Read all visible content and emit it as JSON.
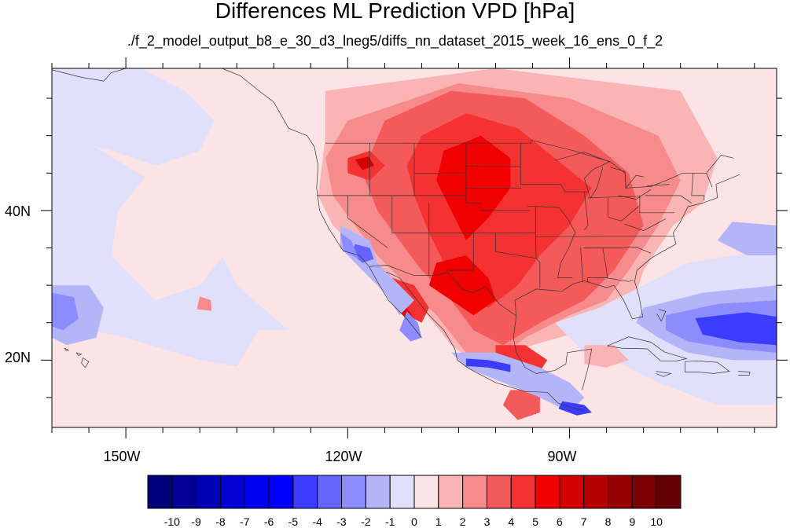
{
  "title": "Differences ML Prediction VPD [hPa]",
  "subtitle": "./f_2_model_output_b8_e_30_d3_lneg5/diffs_nn_dataset_2015_week_16_ens_0_f_2",
  "map": {
    "projection": "cylindrical-equidistant",
    "lon_range": [
      -160,
      -62
    ],
    "lat_range": [
      11,
      59
    ],
    "lon_ticks": [
      "150W",
      "120W",
      "90W"
    ],
    "lat_ticks": [
      "40N",
      "20N"
    ],
    "features": [
      "coastlines",
      "us-state-borders",
      "national-borders"
    ]
  },
  "colorbar": {
    "levels": [
      "-10",
      "-9",
      "-8",
      "-7",
      "-6",
      "-5",
      "-4",
      "-3",
      "-2",
      "-1",
      "0",
      "1",
      "2",
      "3",
      "4",
      "5",
      "6",
      "7",
      "8",
      "9",
      "10"
    ],
    "colors": [
      "#00007a",
      "#000096",
      "#0000b4",
      "#0000d2",
      "#0000ee",
      "#0000ff",
      "#3c3cff",
      "#6464ff",
      "#8c8cff",
      "#b4b4f8",
      "#e0e0fa",
      "#fce4e6",
      "#fab4b4",
      "#f78a8a",
      "#f55a5a",
      "#f53232",
      "#f00000",
      "#d20000",
      "#b40000",
      "#960000",
      "#7a0000",
      "#640000"
    ]
  },
  "regions": [
    {
      "type": "polygon",
      "color": "#e0e0fa",
      "points": [
        [
          -160,
          52
        ],
        [
          -150,
          46
        ],
        [
          -140,
          40
        ],
        [
          -135,
          30
        ],
        [
          -128,
          24
        ],
        [
          -122,
          20
        ],
        [
          -115,
          16
        ],
        [
          -110,
          13
        ],
        [
          -160,
          13
        ]
      ]
    },
    {
      "type": "polygon",
      "color": "#fce4e6",
      "points": [
        [
          -147,
          45
        ],
        [
          -140,
          40
        ],
        [
          -136,
          35
        ],
        [
          -140,
          30
        ],
        [
          -146,
          28
        ],
        [
          -152,
          34
        ],
        [
          -151,
          40
        ]
      ]
    },
    {
      "type": "polygon",
      "color": "#fce4e6",
      "points": [
        [
          -160,
          13
        ],
        [
          -160,
          25
        ],
        [
          -150,
          23
        ],
        [
          -140,
          20
        ],
        [
          -128,
          18
        ],
        [
          -120,
          16
        ],
        [
          -112,
          14
        ],
        [
          -105,
          12
        ],
        [
          -100,
          11
        ],
        [
          -160,
          11
        ]
      ]
    },
    {
      "type": "polygon",
      "color": "#fce4e6",
      "points": [
        [
          -137,
          16
        ],
        [
          -132,
          24
        ],
        [
          -126,
          24
        ],
        [
          -120,
          20
        ],
        [
          -114,
          16
        ],
        [
          -108,
          13
        ],
        [
          -100,
          11
        ],
        [
          -125,
          11
        ]
      ]
    },
    {
      "type": "polygon",
      "color": "#fce4e6",
      "points": [
        [
          -125,
          59
        ],
        [
          -62,
          59
        ],
        [
          -62,
          33
        ],
        [
          -72,
          34
        ],
        [
          -76,
          36
        ],
        [
          -80,
          30
        ],
        [
          -82,
          24
        ],
        [
          -88,
          22
        ],
        [
          -96,
          20
        ],
        [
          -104,
          18
        ],
        [
          -110,
          22
        ],
        [
          -114,
          28
        ],
        [
          -118,
          32
        ],
        [
          -122,
          36
        ],
        [
          -124,
          42
        ],
        [
          -125,
          50
        ]
      ]
    },
    {
      "type": "polygon",
      "color": "#fab4b4",
      "points": [
        [
          -123,
          56
        ],
        [
          -100,
          59
        ],
        [
          -75,
          56
        ],
        [
          -70,
          47
        ],
        [
          -72,
          41
        ],
        [
          -76,
          38
        ],
        [
          -80,
          32
        ],
        [
          -82,
          26
        ],
        [
          -88,
          24
        ],
        [
          -95,
          22
        ],
        [
          -102,
          19
        ],
        [
          -106,
          22
        ],
        [
          -110,
          27
        ],
        [
          -114,
          31
        ],
        [
          -118,
          34
        ],
        [
          -122,
          38
        ],
        [
          -124,
          42
        ],
        [
          -123,
          50
        ]
      ]
    },
    {
      "type": "polygon",
      "color": "#f78a8a",
      "points": [
        [
          -120,
          52
        ],
        [
          -105,
          57
        ],
        [
          -90,
          55
        ],
        [
          -78,
          50
        ],
        [
          -75,
          44
        ],
        [
          -78,
          38
        ],
        [
          -82,
          32
        ],
        [
          -85,
          28
        ],
        [
          -90,
          26
        ],
        [
          -96,
          23
        ],
        [
          -100,
          20
        ],
        [
          -104,
          21
        ],
        [
          -108,
          26
        ],
        [
          -112,
          30
        ],
        [
          -116,
          34
        ],
        [
          -119,
          38
        ],
        [
          -122,
          42
        ],
        [
          -123,
          47
        ]
      ]
    },
    {
      "type": "polygon",
      "color": "#f55a5a",
      "points": [
        [
          -115,
          52
        ],
        [
          -106,
          56
        ],
        [
          -96,
          55
        ],
        [
          -88,
          50
        ],
        [
          -82,
          45
        ],
        [
          -80,
          38
        ],
        [
          -84,
          32
        ],
        [
          -88,
          28
        ],
        [
          -94,
          25
        ],
        [
          -99,
          22
        ],
        [
          -103,
          24
        ],
        [
          -106,
          28
        ],
        [
          -110,
          32
        ],
        [
          -113,
          36
        ],
        [
          -116,
          40
        ],
        [
          -118,
          45
        ]
      ]
    },
    {
      "type": "polygon",
      "color": "#f53232",
      "points": [
        [
          -110,
          50
        ],
        [
          -104,
          53
        ],
        [
          -97,
          51
        ],
        [
          -92,
          47
        ],
        [
          -87,
          43
        ],
        [
          -90,
          38
        ],
        [
          -94,
          34
        ],
        [
          -97,
          30
        ],
        [
          -101,
          27
        ],
        [
          -104,
          29
        ],
        [
          -107,
          33
        ],
        [
          -109,
          37
        ],
        [
          -111,
          42
        ],
        [
          -112,
          46
        ]
      ]
    },
    {
      "type": "polygon",
      "color": "#f00000",
      "points": [
        [
          -107,
          48
        ],
        [
          -102,
          50
        ],
        [
          -98,
          47
        ],
        [
          -98,
          43
        ],
        [
          -101,
          39
        ],
        [
          -104,
          36
        ],
        [
          -106,
          40
        ],
        [
          -108,
          44
        ]
      ]
    },
    {
      "type": "polygon",
      "color": "#f00000",
      "points": [
        [
          -108,
          33
        ],
        [
          -104,
          34
        ],
        [
          -101,
          31
        ],
        [
          -100,
          28
        ],
        [
          -103,
          26
        ],
        [
          -106,
          28
        ],
        [
          -109,
          30
        ]
      ]
    },
    {
      "type": "polygon",
      "color": "#f53232",
      "points": [
        [
          -120,
          47
        ],
        [
          -117,
          48
        ],
        [
          -115,
          46
        ],
        [
          -117,
          44
        ],
        [
          -120,
          45
        ]
      ]
    },
    {
      "type": "polygon",
      "color": "#d20000",
      "points": [
        [
          -119,
          46.8
        ],
        [
          -117.2,
          47.2
        ],
        [
          -116.4,
          46
        ],
        [
          -118,
          45.4
        ]
      ]
    },
    {
      "type": "polygon",
      "color": "#f53232",
      "points": [
        [
          -114,
          31
        ],
        [
          -111,
          30
        ],
        [
          -109,
          27
        ],
        [
          -110,
          25
        ],
        [
          -112,
          26
        ],
        [
          -114,
          28
        ]
      ]
    },
    {
      "type": "polygon",
      "color": "#f00000",
      "points": [
        [
          -114.5,
          29.2
        ],
        [
          -113,
          28.5
        ],
        [
          -110.8,
          25.2
        ],
        [
          -111.6,
          24.8
        ],
        [
          -113.6,
          27.5
        ]
      ]
    },
    {
      "type": "polygon",
      "color": "#f53232",
      "points": [
        [
          -100,
          22
        ],
        [
          -96,
          22
        ],
        [
          -93,
          20
        ],
        [
          -95,
          17
        ],
        [
          -98,
          18
        ],
        [
          -100,
          20
        ]
      ]
    },
    {
      "type": "polygon",
      "color": "#f55a5a",
      "points": [
        [
          -98,
          16
        ],
        [
          -94,
          16
        ],
        [
          -94,
          13
        ],
        [
          -97,
          12
        ],
        [
          -99,
          14
        ]
      ]
    },
    {
      "type": "polygon",
      "color": "#b4b4f8",
      "points": [
        [
          -121,
          38
        ],
        [
          -117,
          36
        ],
        [
          -116,
          33
        ],
        [
          -113,
          30
        ],
        [
          -111,
          28
        ],
        [
          -113,
          26
        ],
        [
          -115,
          29
        ],
        [
          -118,
          32
        ],
        [
          -121,
          35
        ]
      ]
    },
    {
      "type": "polygon",
      "color": "#6464ff",
      "points": [
        [
          -119,
          35.5
        ],
        [
          -117,
          35
        ],
        [
          -116.5,
          33.5
        ],
        [
          -118,
          33
        ],
        [
          -119.5,
          34.2
        ]
      ]
    },
    {
      "type": "polygon",
      "color": "#8c8cff",
      "points": [
        [
          -121,
          37
        ],
        [
          -119.5,
          36
        ],
        [
          -118.5,
          33.5
        ],
        [
          -120.5,
          34.5
        ]
      ]
    },
    {
      "type": "polygon",
      "color": "#8c8cff",
      "points": [
        [
          -112,
          26.5
        ],
        [
          -110.5,
          25
        ],
        [
          -110,
          23
        ],
        [
          -111.5,
          22.5
        ],
        [
          -113,
          24
        ]
      ]
    },
    {
      "type": "polygon",
      "color": "#b4b4f8",
      "points": [
        [
          -106,
          21
        ],
        [
          -100,
          21
        ],
        [
          -94,
          19
        ],
        [
          -90,
          17
        ],
        [
          -88,
          15
        ],
        [
          -90,
          13
        ],
        [
          -94,
          15
        ],
        [
          -99,
          17
        ],
        [
          -104,
          19
        ]
      ]
    },
    {
      "type": "polygon",
      "color": "#3c3cff",
      "points": [
        [
          -104,
          20.2
        ],
        [
          -101,
          20
        ],
        [
          -98,
          19.4
        ],
        [
          -98,
          18.4
        ],
        [
          -101,
          19
        ],
        [
          -104,
          19.2
        ]
      ]
    },
    {
      "type": "polygon",
      "color": "#3c3cff",
      "points": [
        [
          -91,
          14.5
        ],
        [
          -88,
          14
        ],
        [
          -87,
          13
        ],
        [
          -89,
          12.6
        ],
        [
          -91.5,
          13.5
        ]
      ]
    },
    {
      "type": "polygon",
      "color": "#e0e0fa",
      "points": [
        [
          -92,
          25
        ],
        [
          -86,
          27
        ],
        [
          -80,
          30
        ],
        [
          -74,
          33
        ],
        [
          -62,
          35
        ],
        [
          -62,
          14
        ],
        [
          -70,
          14
        ],
        [
          -78,
          17
        ],
        [
          -84,
          20
        ],
        [
          -88,
          21
        ]
      ]
    },
    {
      "type": "polygon",
      "color": "#b4b4f8",
      "points": [
        [
          -80,
          27
        ],
        [
          -72,
          29
        ],
        [
          -62,
          30
        ],
        [
          -62,
          20
        ],
        [
          -68,
          20
        ],
        [
          -74,
          21
        ],
        [
          -78,
          23
        ],
        [
          -81,
          25
        ]
      ]
    },
    {
      "type": "polygon",
      "color": "#8c8cff",
      "points": [
        [
          -77,
          26
        ],
        [
          -70,
          27.5
        ],
        [
          -62,
          28
        ],
        [
          -62,
          21
        ],
        [
          -68,
          21.5
        ],
        [
          -74,
          22.5
        ],
        [
          -77,
          24
        ]
      ]
    },
    {
      "type": "polygon",
      "color": "#3c3cff",
      "points": [
        [
          -73,
          25.6
        ],
        [
          -66,
          26.4
        ],
        [
          -62,
          25.8
        ],
        [
          -62,
          22
        ],
        [
          -67,
          22.4
        ],
        [
          -72,
          23.4
        ]
      ]
    },
    {
      "type": "polygon",
      "color": "#b4b4f8",
      "points": [
        [
          -62,
          38
        ],
        [
          -68,
          38.5
        ],
        [
          -70,
          36
        ],
        [
          -66,
          34
        ],
        [
          -62,
          34
        ]
      ]
    },
    {
      "type": "polygon",
      "color": "#b4b4f8",
      "points": [
        [
          -160,
          30
        ],
        [
          -155,
          30
        ],
        [
          -153,
          27
        ],
        [
          -154,
          23
        ],
        [
          -158,
          22
        ],
        [
          -160,
          23
        ]
      ]
    },
    {
      "type": "polygon",
      "color": "#8c8cff",
      "points": [
        [
          -160,
          29
        ],
        [
          -157,
          28.4
        ],
        [
          -156.4,
          25.5
        ],
        [
          -158.5,
          24
        ],
        [
          -160,
          24.5
        ]
      ]
    },
    {
      "type": "polygon",
      "color": "#e0e0fa",
      "points": [
        [
          -160,
          59
        ],
        [
          -148,
          59
        ],
        [
          -142,
          56
        ],
        [
          -138,
          52
        ],
        [
          -140,
          48
        ],
        [
          -146,
          46
        ],
        [
          -152,
          48
        ],
        [
          -160,
          50
        ]
      ]
    },
    {
      "type": "polygon",
      "color": "#fab4b4",
      "points": [
        [
          -88,
          22
        ],
        [
          -84,
          22
        ],
        [
          -82,
          20
        ],
        [
          -85,
          19
        ],
        [
          -88,
          19.5
        ]
      ]
    },
    {
      "type": "polygon",
      "color": "#f78a8a",
      "points": [
        [
          -140,
          28.5
        ],
        [
          -138.5,
          28
        ],
        [
          -138.4,
          26.6
        ],
        [
          -140.4,
          26.8
        ]
      ]
    }
  ]
}
